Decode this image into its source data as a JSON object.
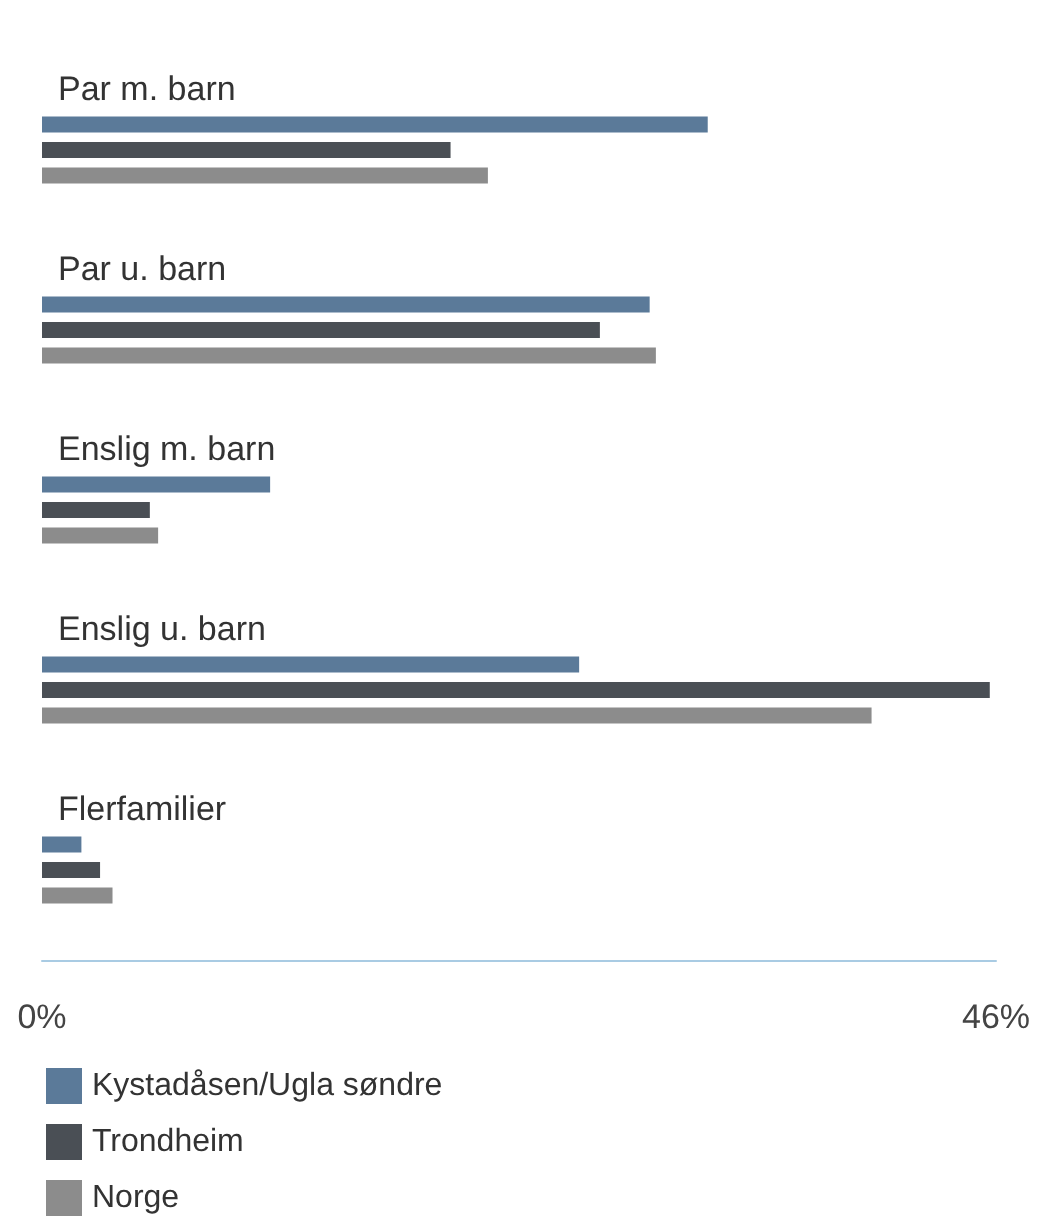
{
  "chart_data": {
    "type": "bar",
    "orientation": "horizontal",
    "categories": [
      "Par m. barn",
      "Par u. barn",
      "Enslig m. barn",
      "Enslig u. barn",
      "Flerfamilier"
    ],
    "series": [
      {
        "name": "Kystadåsen/Ugla søndre",
        "color": "#5b7a99",
        "values": [
          32.1,
          29.3,
          11.0,
          25.9,
          1.9
        ]
      },
      {
        "name": "Trondheim",
        "color": "#4a4f55",
        "values": [
          19.7,
          26.9,
          5.2,
          45.7,
          2.8
        ]
      },
      {
        "name": "Norge",
        "color": "#8c8c8c",
        "values": [
          21.5,
          29.6,
          5.6,
          40.0,
          3.4
        ]
      }
    ],
    "xlim": [
      0,
      46
    ],
    "xticks": [
      {
        "value": 0,
        "label": "0%"
      },
      {
        "value": 46,
        "label": "46%"
      }
    ],
    "grid": false,
    "legend": "bottom left"
  }
}
